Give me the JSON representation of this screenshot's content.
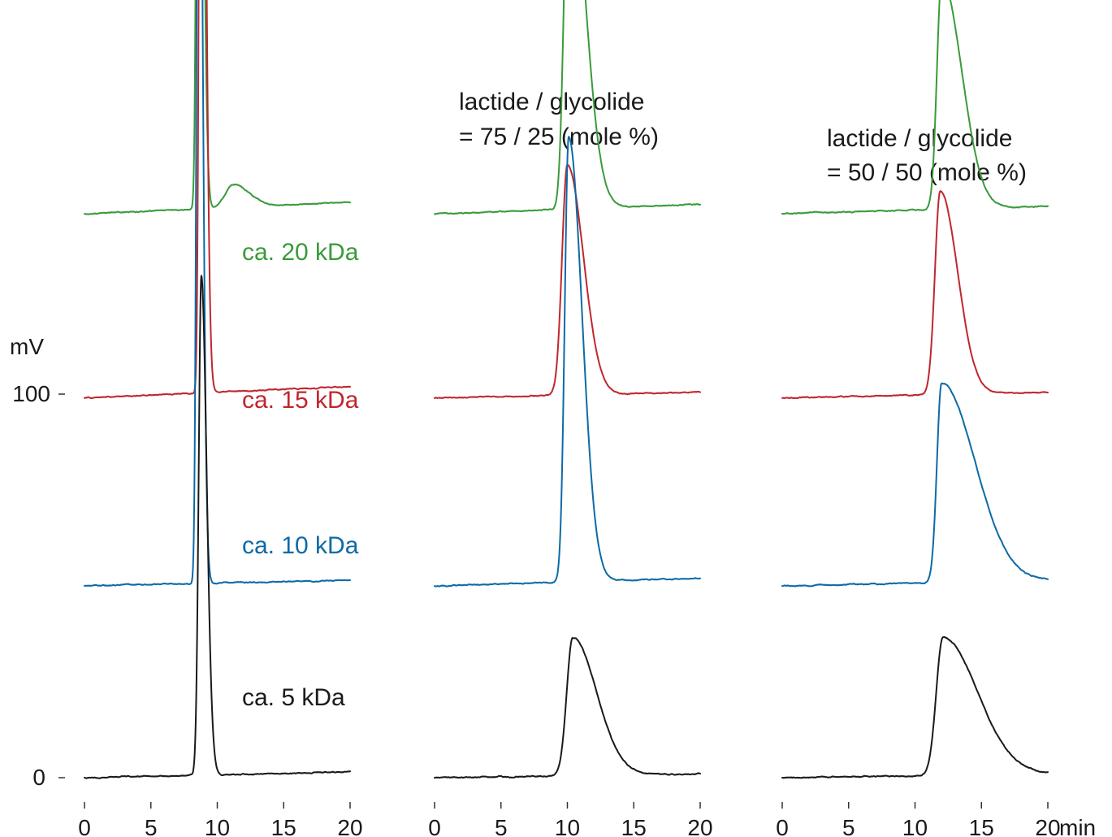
{
  "chart_data": {
    "type": "line",
    "y_axis": {
      "label": "mV",
      "ticks": [
        0,
        100
      ]
    },
    "x_axis": {
      "unit": "min",
      "ticks": [
        0,
        5,
        10,
        15,
        20
      ]
    },
    "colors": {
      "ca. 20 kDa": "#3a9a3a",
      "ca. 15 kDa": "#c0262d",
      "ca. 10 kDa": "#0c6aa6",
      "ca. 5 kDa": "#1a1a1a"
    },
    "panels": [
      {
        "annotation": [
          "",
          ""
        ],
        "traces": [
          {
            "name": "ca. 20 kDa",
            "offset": 147,
            "baseline_start": 0.0,
            "baseline_end": 3.0,
            "peaks": [
              {
                "t": 8.6,
                "h": 212,
                "wl": 0.15,
                "wr": 0.3
              },
              {
                "t": 11.2,
                "h": 6,
                "wl": 0.6,
                "wr": 1.2
              }
            ]
          },
          {
            "name": "ca. 15 kDa",
            "offset": 99,
            "baseline_start": 0.0,
            "baseline_end": 3.0,
            "peaks": [
              {
                "t": 8.8,
                "h": 262,
                "wl": 0.15,
                "wr": 0.3
              }
            ]
          },
          {
            "name": "ca. 10 kDa",
            "offset": 50,
            "baseline_start": 0.0,
            "baseline_end": 1.5,
            "peaks": [
              {
                "t": 8.6,
                "h": 259,
                "wl": 0.15,
                "wr": 0.28
              }
            ]
          },
          {
            "name": "ca. 5 kDa",
            "offset": 0,
            "baseline_start": 0.0,
            "baseline_end": 1.5,
            "peaks": [
              {
                "t": 8.8,
                "h": 130,
                "wl": 0.2,
                "wr": 0.4
              }
            ]
          }
        ]
      },
      {
        "annotation": [
          "lactide / glycolide",
          "= 75 / 25 (mole %)"
        ],
        "traces": [
          {
            "name": "ca. 20 kDa",
            "offset": 147,
            "baseline_start": 0.0,
            "baseline_end": 2.5,
            "peaks": [
              {
                "t": 10.1,
                "h": 95,
                "wl": 0.35,
                "wr": 1.2
              }
            ]
          },
          {
            "name": "ca. 15 kDa",
            "offset": 99,
            "baseline_start": 0.0,
            "baseline_end": 1.5,
            "peaks": [
              {
                "t": 10.0,
                "h": 60,
                "wl": 0.4,
                "wr": 1.2
              }
            ]
          },
          {
            "name": "ca. 10 kDa",
            "offset": 50,
            "baseline_start": 0.0,
            "baseline_end": 2.0,
            "peaks": [
              {
                "t": 10.1,
                "h": 116,
                "wl": 0.3,
                "wr": 1.0
              }
            ]
          },
          {
            "name": "ca. 5 kDa",
            "offset": 0,
            "baseline_start": 0.0,
            "baseline_end": 1.0,
            "peaks": [
              {
                "t": 10.4,
                "h": 36,
                "wl": 0.45,
                "wr": 1.8
              }
            ]
          }
        ]
      },
      {
        "annotation": [
          "lactide / glycolide",
          "= 50 / 50 (mole %)"
        ],
        "traces": [
          {
            "name": "ca. 20 kDa",
            "offset": 147,
            "baseline_start": 0.0,
            "baseline_end": 2.0,
            "peaks": [
              {
                "t": 12.0,
                "h": 60,
                "wl": 0.35,
                "wr": 1.5
              }
            ]
          },
          {
            "name": "ca. 15 kDa",
            "offset": 99,
            "baseline_start": 0.0,
            "baseline_end": 1.5,
            "peaks": [
              {
                "t": 11.9,
                "h": 53,
                "wl": 0.4,
                "wr": 1.3
              }
            ]
          },
          {
            "name": "ca. 10 kDa",
            "offset": 50,
            "baseline_start": 0.0,
            "baseline_end": 1.5,
            "peaks": [
              {
                "t": 12.0,
                "h": 52,
                "wl": 0.35,
                "wr": 2.5
              }
            ]
          },
          {
            "name": "ca. 5 kDa",
            "offset": 0,
            "baseline_start": 0.0,
            "baseline_end": 1.0,
            "peaks": [
              {
                "t": 12.1,
                "h": 36,
                "wl": 0.5,
                "wr": 2.6
              }
            ]
          }
        ]
      }
    ]
  }
}
